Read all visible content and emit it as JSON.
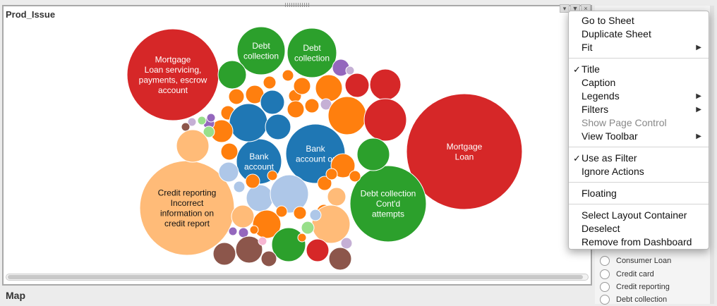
{
  "panel": {
    "title": "Prod_Issue",
    "footer_title": "Map"
  },
  "bubbles": {
    "colors": {
      "red": "#d62728",
      "green": "#2ca02c",
      "blue": "#1f77b4",
      "orange": "#ff7f0e",
      "peach": "#ffbb78",
      "lightblue": "#aec7e8",
      "purple": "#9467bd",
      "brown": "#8c564b",
      "lightgreen": "#98df8a",
      "lavender": "#c5b0d5",
      "pink": "#f7b6d2"
    },
    "labels": {
      "mortgage_loan_servicing": [
        "Mortgage",
        "Loan servicing,",
        "payments, escrow",
        "account"
      ],
      "debt_collection_1": [
        "Debt",
        "collection"
      ],
      "debt_collection_2": [
        "Debt",
        "collection"
      ],
      "mortgage_loan": [
        "Mortgage",
        "Loan"
      ],
      "bank_account_1": [
        "Bank",
        "account"
      ],
      "bank_account_2": [
        "Bank",
        "account or"
      ],
      "credit_reporting": [
        "Credit reporting",
        "Incorrect",
        "information on",
        "credit report"
      ],
      "debt_collection_contd": [
        "Debt collection",
        "Cont'd",
        "attempts"
      ]
    }
  },
  "context_menu": {
    "groups": [
      [
        {
          "label": "Go to Sheet",
          "submenu": false
        },
        {
          "label": "Duplicate Sheet",
          "submenu": false
        },
        {
          "label": "Fit",
          "submenu": true
        }
      ],
      [
        {
          "label": "Title",
          "checked": true
        },
        {
          "label": "Caption"
        },
        {
          "label": "Legends",
          "submenu": true
        },
        {
          "label": "Filters",
          "submenu": true
        },
        {
          "label": "Show Page Control",
          "disabled": true
        },
        {
          "label": "View Toolbar",
          "submenu": true
        }
      ],
      [
        {
          "label": "Use as Filter",
          "checked": true
        },
        {
          "label": "Ignore Actions"
        }
      ],
      [
        {
          "label": "Floating"
        }
      ],
      [
        {
          "label": "Select Layout Container"
        },
        {
          "label": "Deselect"
        },
        {
          "label": "Remove from Dashboard"
        }
      ]
    ]
  },
  "legend": {
    "items": [
      "Consumer Loan",
      "Credit card",
      "Credit reporting",
      "Debt collection"
    ]
  }
}
